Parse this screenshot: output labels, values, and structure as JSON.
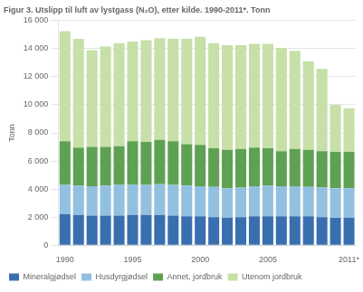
{
  "chart_data": {
    "type": "bar",
    "title": "Figur 3. Utslipp til luft av lystgass (N₂O), etter kilde. 1990-2011*. Tonn",
    "ylabel": "Tonn",
    "categories": [
      "1990",
      null,
      null,
      null,
      null,
      "1995",
      null,
      null,
      null,
      null,
      "2000",
      null,
      null,
      null,
      null,
      "2005",
      null,
      null,
      null,
      null,
      null,
      "2011*"
    ],
    "series": [
      {
        "name": "Mineralgjødsel",
        "color": "#3a6faf",
        "values": [
          2200,
          2150,
          2100,
          2100,
          2100,
          2150,
          2150,
          2150,
          2100,
          2050,
          2050,
          2000,
          1950,
          2000,
          2050,
          2050,
          2050,
          2050,
          2050,
          2000,
          1950,
          1950
        ]
      },
      {
        "name": "Husdyrgjødsel",
        "color": "#92c0e0",
        "values": [
          2100,
          2100,
          2100,
          2150,
          2200,
          2150,
          2150,
          2200,
          2200,
          2200,
          2150,
          2150,
          2100,
          2100,
          2150,
          2200,
          2150,
          2150,
          2100,
          2100,
          2100,
          2100
        ]
      },
      {
        "name": "Annet, jordbruk",
        "color": "#5fa152",
        "values": [
          3100,
          2700,
          2800,
          2750,
          2750,
          3100,
          3050,
          3150,
          3100,
          2950,
          2950,
          2750,
          2750,
          2750,
          2750,
          2650,
          2500,
          2650,
          2650,
          2600,
          2600,
          2600
        ]
      },
      {
        "name": "Utenom jordbruk",
        "color": "#c6e0a8",
        "values": [
          7850,
          7750,
          6900,
          7150,
          7350,
          7100,
          7250,
          7250,
          7300,
          7500,
          7700,
          7500,
          7450,
          7400,
          7400,
          7450,
          7350,
          7000,
          6300,
          5850,
          3350,
          3100
        ]
      }
    ],
    "stacked": true,
    "ylim": [
      0,
      16000
    ],
    "yticks": [
      0,
      {
        "value": 2000,
        "label": "2 000"
      },
      {
        "value": 4000,
        "label": "4 000"
      },
      {
        "value": 6000,
        "label": "6 000"
      },
      {
        "value": 8000,
        "label": "8 000"
      },
      {
        "value": 10000,
        "label": "10 000"
      },
      {
        "value": 12000,
        "label": "12 000"
      },
      {
        "value": 14000,
        "label": "14 000"
      },
      {
        "value": 16000,
        "label": "16 000"
      }
    ],
    "grid": true,
    "legend": "bottom"
  }
}
